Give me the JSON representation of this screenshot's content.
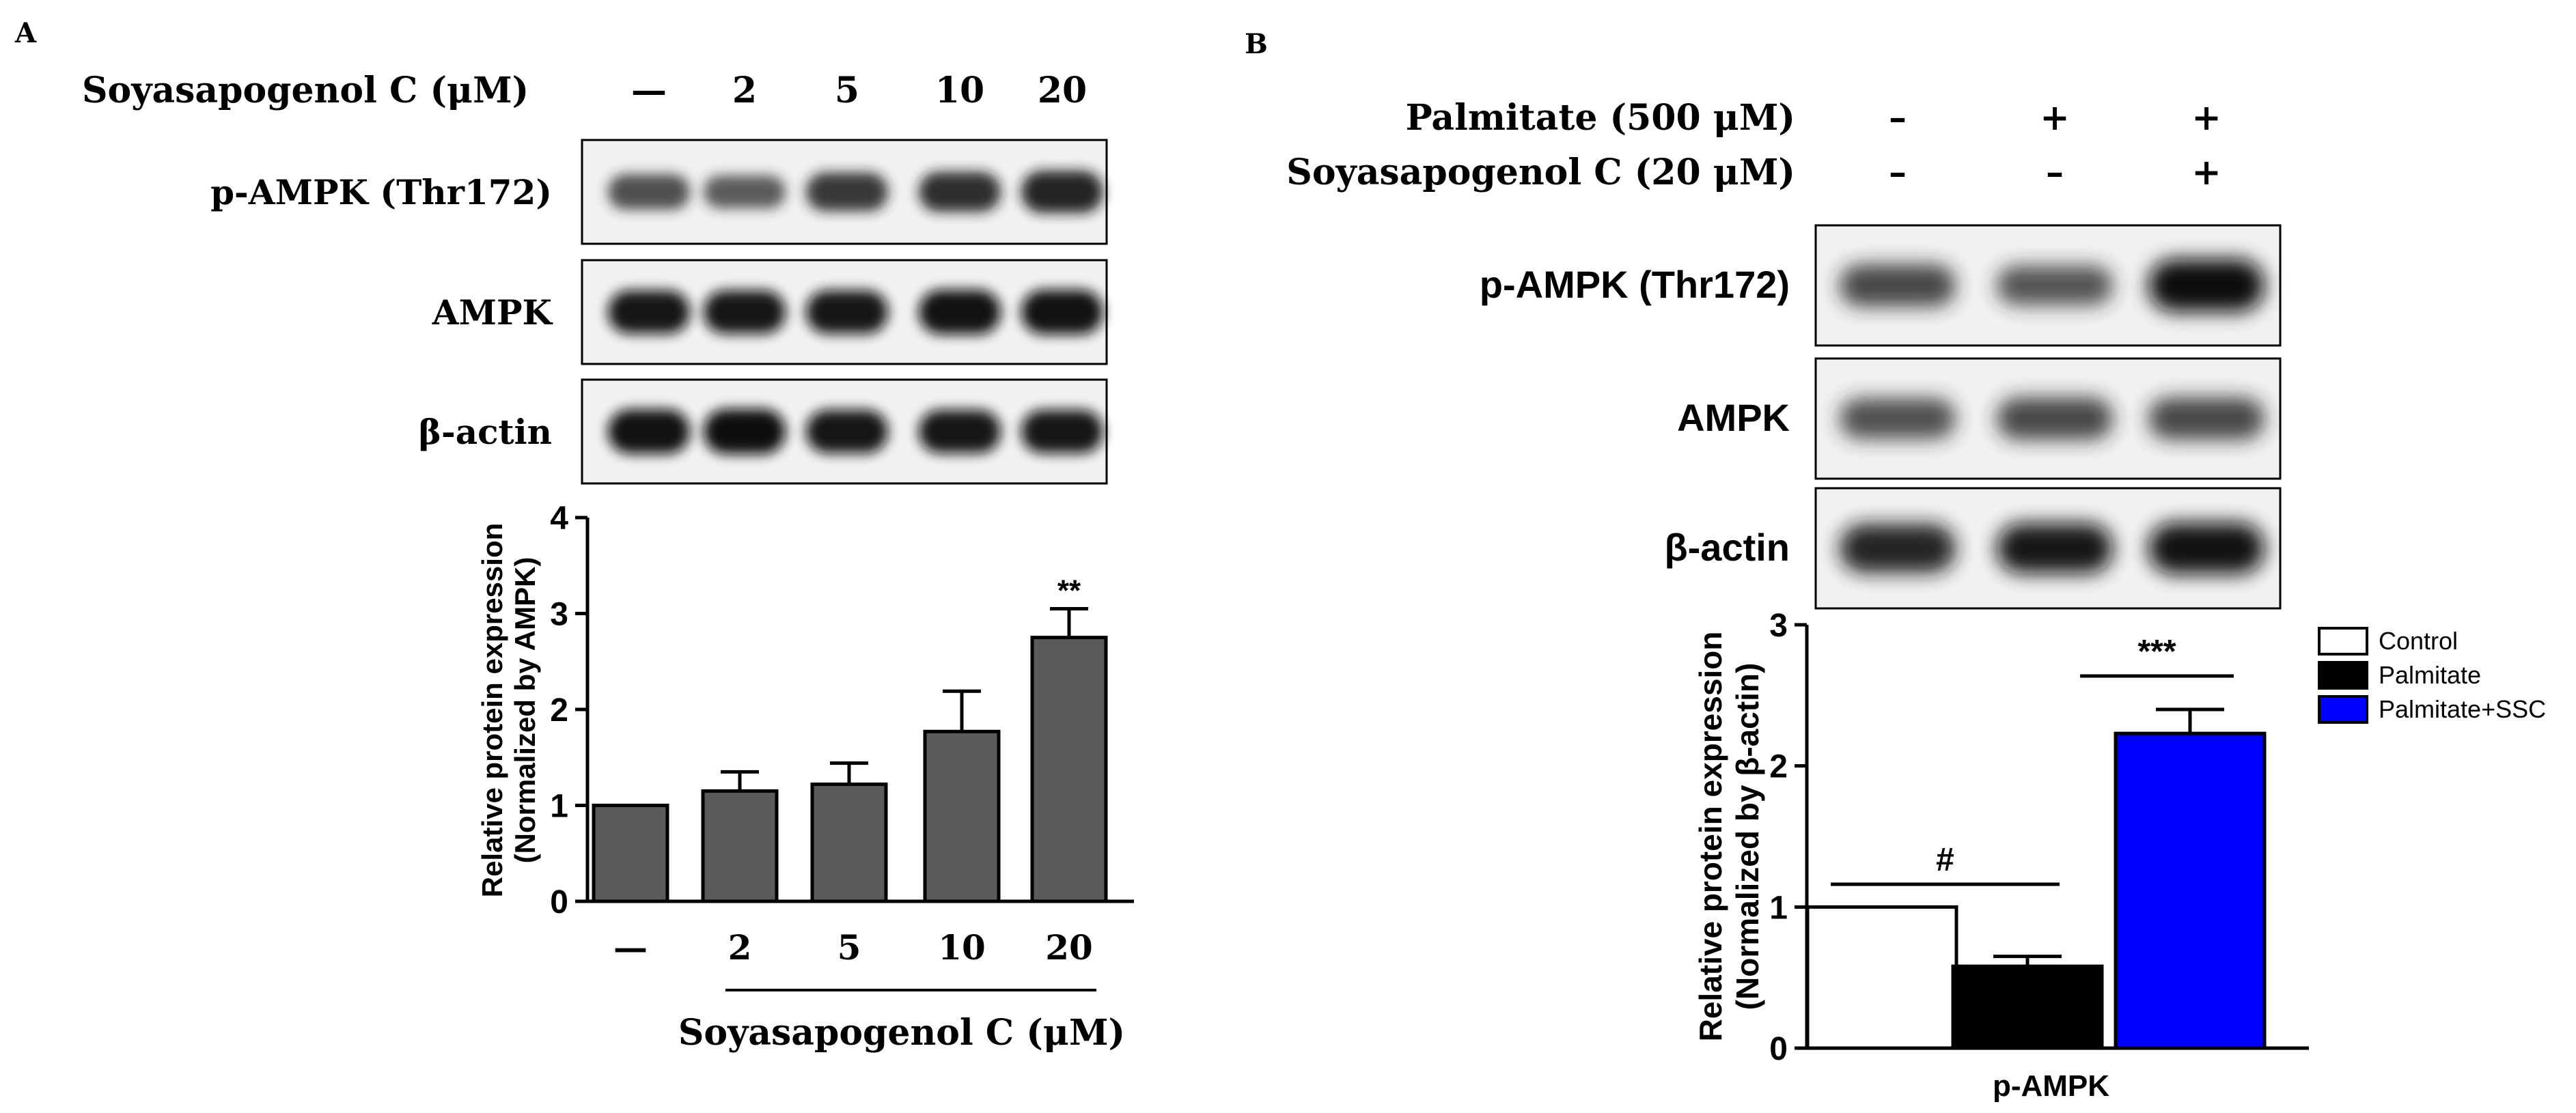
{
  "panel_a": {
    "letter": "A",
    "treatment_label": "Soyasapogenol C (μM)",
    "lanes": [
      "—",
      "2",
      "5",
      "10",
      "20"
    ],
    "blots": [
      {
        "label": "p-AMPK (Thr172)",
        "intensity": [
          0.55,
          0.45,
          0.7,
          0.75,
          0.85
        ]
      },
      {
        "label": "AMPK",
        "intensity": [
          0.9,
          0.9,
          0.9,
          0.95,
          0.95
        ]
      },
      {
        "label": "β-actin",
        "intensity": [
          0.95,
          0.98,
          0.9,
          0.9,
          0.9
        ]
      }
    ]
  },
  "panel_b": {
    "letter": "B",
    "conditions": [
      {
        "label": "Palmitate (500 μM)",
        "values": [
          "–",
          "+",
          "+"
        ]
      },
      {
        "label": "Soyasapogenol C (20 μM)",
        "values": [
          "–",
          "–",
          "+"
        ]
      }
    ],
    "blots": [
      {
        "label": "p-AMPK (Thr172)",
        "intensity": [
          0.6,
          0.5,
          1.0
        ]
      },
      {
        "label": "AMPK",
        "intensity": [
          0.55,
          0.6,
          0.6
        ]
      },
      {
        "label": "β-actin",
        "intensity": [
          0.85,
          0.9,
          0.95
        ]
      }
    ]
  },
  "chart_data": [
    {
      "type": "bar",
      "categories": [
        "—",
        "2",
        "5",
        "10",
        "20"
      ],
      "values": [
        1.0,
        1.15,
        1.22,
        1.77,
        2.75
      ],
      "errors": [
        0,
        0.2,
        0.22,
        0.42,
        0.3
      ],
      "annotations": [
        "",
        "",
        "",
        "",
        "**"
      ],
      "ylabel_line1": "Relative protein expression",
      "ylabel_line2": "(Normalized by AMPK)",
      "xlabel": "Soyasapogenol C (μM)",
      "ylim": [
        0,
        4
      ],
      "yticks": [
        "0",
        "1",
        "2",
        "3",
        "4"
      ],
      "bar_color": "#5a5a5a"
    },
    {
      "type": "bar",
      "categories": [
        "p-AMPK"
      ],
      "series": [
        {
          "name": "Control",
          "values": [
            1.0
          ],
          "errors": [
            0
          ],
          "color": "#ffffff"
        },
        {
          "name": "Palmitate",
          "values": [
            0.58
          ],
          "errors": [
            0.07
          ],
          "color": "#000000"
        },
        {
          "name": "Palmitate+SSC",
          "values": [
            2.23
          ],
          "errors": [
            0.17
          ],
          "color": "#0000ff"
        }
      ],
      "ylabel_line1": "Relative protein expression",
      "ylabel_line2": "(Normalized by β-actin)",
      "ylim": [
        0,
        3
      ],
      "yticks": [
        "0",
        "1",
        "2",
        "3"
      ],
      "significance": [
        {
          "text": "#",
          "between": [
            "Control",
            "Palmitate"
          ]
        },
        {
          "text": "***",
          "between": [
            "Palmitate",
            "Palmitate+SSC"
          ]
        }
      ],
      "legend_position": "top-right"
    }
  ]
}
